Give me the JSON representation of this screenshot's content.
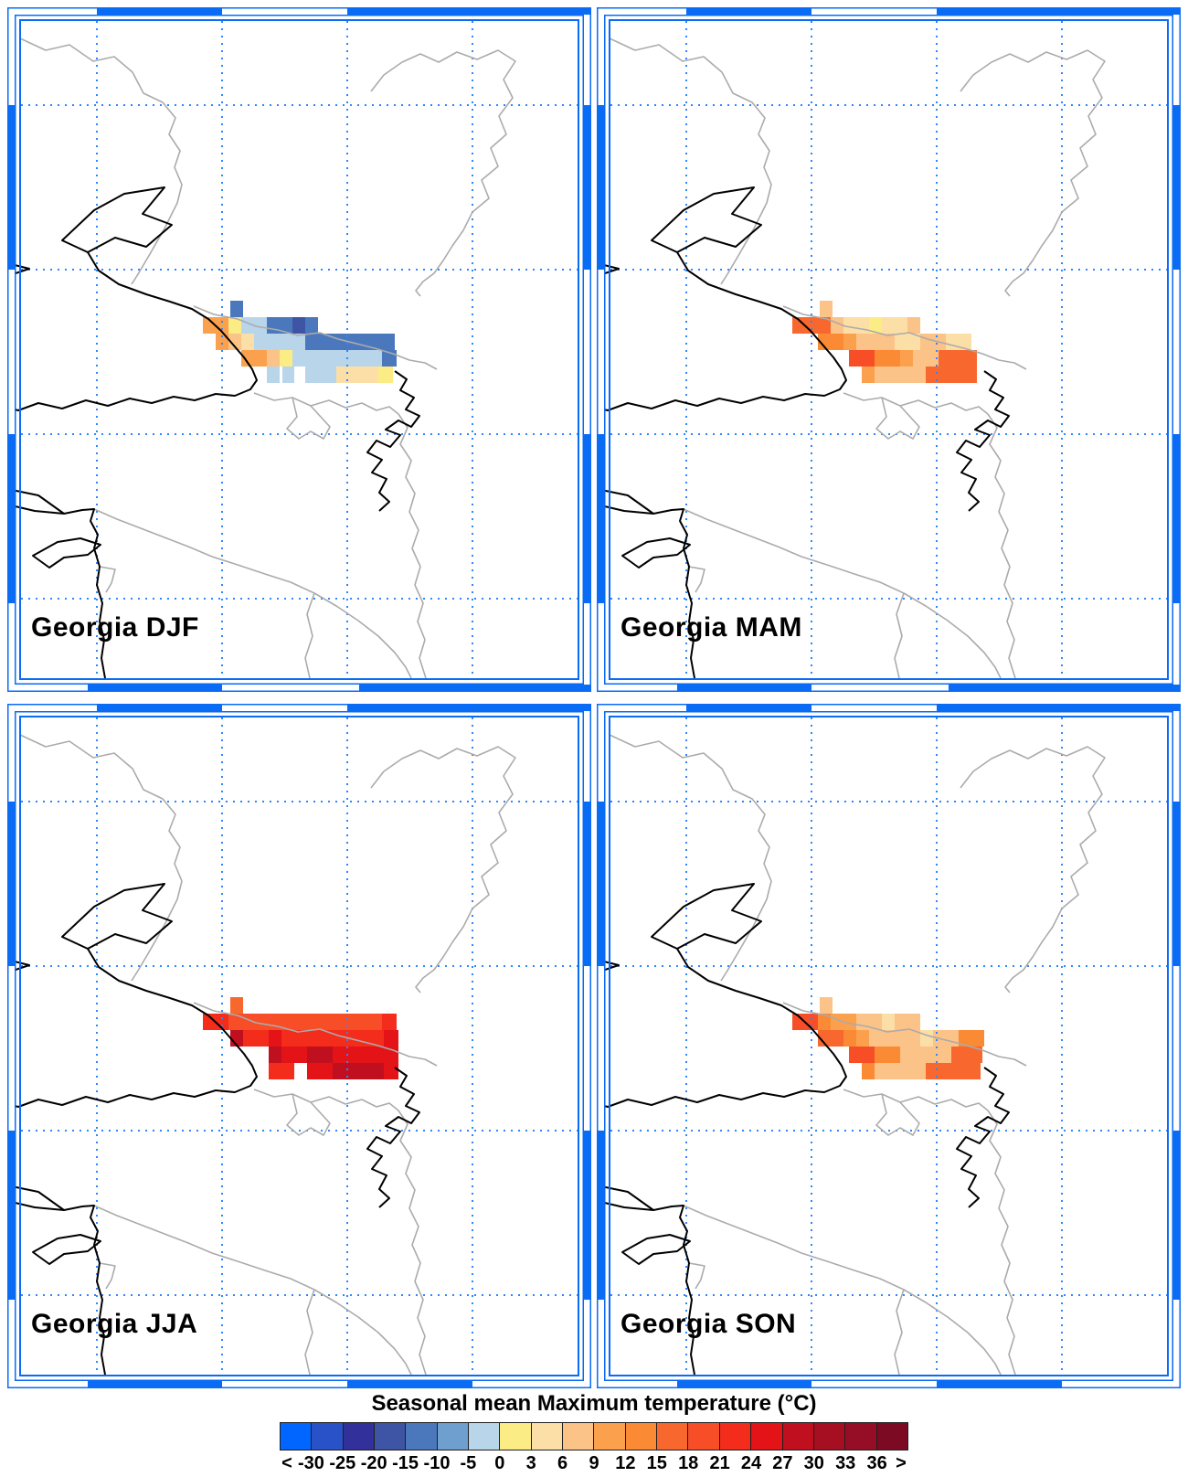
{
  "figure_title": "Seasonal mean Maximum temperature (°C)",
  "panels": [
    {
      "id": "djf",
      "label": "Georgia DJF",
      "cells": [
        [
          244,
          321,
          14,
          18,
          5
        ],
        [
          214,
          339,
          28,
          18,
          11
        ],
        [
          242,
          339,
          14,
          18,
          8
        ],
        [
          256,
          339,
          28,
          18,
          7
        ],
        [
          284,
          339,
          28,
          18,
          5
        ],
        [
          312,
          339,
          14,
          18,
          4
        ],
        [
          326,
          339,
          14,
          18,
          5
        ],
        [
          228,
          357,
          14,
          18,
          11
        ],
        [
          242,
          357,
          14,
          18,
          10
        ],
        [
          256,
          357,
          14,
          18,
          9
        ],
        [
          270,
          357,
          56,
          18,
          7
        ],
        [
          326,
          357,
          98,
          18,
          5
        ],
        [
          256,
          375,
          28,
          18,
          11
        ],
        [
          284,
          375,
          14,
          18,
          10
        ],
        [
          298,
          375,
          14,
          18,
          8
        ],
        [
          312,
          375,
          98,
          18,
          7
        ],
        [
          410,
          375,
          16,
          18,
          5
        ],
        [
          284,
          393,
          14,
          18,
          7
        ],
        [
          301,
          393,
          13,
          18,
          7
        ],
        [
          326,
          393,
          34,
          18,
          7
        ],
        [
          360,
          393,
          46,
          18,
          9
        ],
        [
          406,
          393,
          16,
          18,
          8
        ]
      ]
    },
    {
      "id": "mam",
      "label": "Georgia MAM",
      "cells": [
        [
          244,
          321,
          14,
          18,
          10
        ],
        [
          214,
          339,
          42,
          18,
          13
        ],
        [
          256,
          339,
          14,
          18,
          10
        ],
        [
          270,
          339,
          28,
          18,
          9
        ],
        [
          298,
          339,
          14,
          18,
          8
        ],
        [
          312,
          339,
          28,
          18,
          9
        ],
        [
          340,
          339,
          14,
          18,
          10
        ],
        [
          242,
          357,
          28,
          18,
          12
        ],
        [
          270,
          357,
          14,
          18,
          11
        ],
        [
          284,
          357,
          14,
          18,
          10
        ],
        [
          298,
          357,
          28,
          18,
          10
        ],
        [
          326,
          357,
          28,
          18,
          9
        ],
        [
          354,
          357,
          28,
          18,
          10
        ],
        [
          382,
          357,
          28,
          18,
          9
        ],
        [
          276,
          375,
          28,
          18,
          14
        ],
        [
          304,
          375,
          28,
          18,
          12
        ],
        [
          332,
          375,
          14,
          18,
          11
        ],
        [
          346,
          375,
          28,
          18,
          10
        ],
        [
          374,
          375,
          42,
          18,
          13
        ],
        [
          290,
          393,
          14,
          18,
          11
        ],
        [
          304,
          393,
          56,
          18,
          10
        ],
        [
          360,
          393,
          56,
          18,
          13
        ]
      ]
    },
    {
      "id": "jja",
      "label": "Georgia JJA",
      "cells": [
        [
          244,
          321,
          14,
          18,
          13
        ],
        [
          214,
          339,
          28,
          18,
          15
        ],
        [
          242,
          339,
          168,
          18,
          14
        ],
        [
          410,
          339,
          16,
          18,
          15
        ],
        [
          244,
          357,
          14,
          18,
          17
        ],
        [
          258,
          357,
          28,
          18,
          15
        ],
        [
          286,
          357,
          14,
          18,
          16
        ],
        [
          300,
          357,
          112,
          18,
          15
        ],
        [
          412,
          357,
          16,
          18,
          16
        ],
        [
          286,
          375,
          14,
          18,
          17
        ],
        [
          300,
          375,
          28,
          18,
          16
        ],
        [
          328,
          375,
          28,
          18,
          17
        ],
        [
          356,
          375,
          56,
          18,
          16
        ],
        [
          412,
          375,
          16,
          18,
          16
        ],
        [
          286,
          393,
          28,
          18,
          15
        ],
        [
          328,
          393,
          28,
          18,
          16
        ],
        [
          356,
          393,
          56,
          18,
          17
        ],
        [
          412,
          393,
          16,
          18,
          16
        ]
      ]
    },
    {
      "id": "son",
      "label": "Georgia SON",
      "cells": [
        [
          244,
          321,
          14,
          18,
          10
        ],
        [
          214,
          339,
          28,
          18,
          14
        ],
        [
          242,
          339,
          14,
          18,
          12
        ],
        [
          256,
          339,
          28,
          18,
          11
        ],
        [
          284,
          339,
          28,
          18,
          10
        ],
        [
          312,
          339,
          14,
          18,
          9
        ],
        [
          326,
          339,
          28,
          18,
          10
        ],
        [
          242,
          357,
          28,
          18,
          13
        ],
        [
          270,
          357,
          14,
          18,
          12
        ],
        [
          284,
          357,
          14,
          18,
          11
        ],
        [
          298,
          357,
          56,
          18,
          10
        ],
        [
          354,
          357,
          14,
          18,
          9
        ],
        [
          368,
          357,
          28,
          18,
          10
        ],
        [
          396,
          357,
          28,
          18,
          12
        ],
        [
          276,
          375,
          28,
          18,
          14
        ],
        [
          304,
          375,
          28,
          18,
          12
        ],
        [
          332,
          375,
          28,
          18,
          10
        ],
        [
          360,
          375,
          28,
          18,
          10
        ],
        [
          388,
          375,
          34,
          18,
          13
        ],
        [
          290,
          393,
          14,
          18,
          12
        ],
        [
          304,
          393,
          56,
          18,
          10
        ],
        [
          360,
          393,
          60,
          18,
          13
        ]
      ]
    }
  ],
  "colorbar": {
    "title": "Seasonal mean Maximum temperature (°C)",
    "colors": [
      "#0066FF",
      "#2951C8",
      "#32309B",
      "#3E55A6",
      "#4B78BC",
      "#6F9FCE",
      "#B9D5EA",
      "#FBEC85",
      "#FCDFA6",
      "#FCC388",
      "#FBA14E",
      "#FA8A33",
      "#F8682E",
      "#F74E28",
      "#F42C1B",
      "#E31318",
      "#C01020",
      "#A60E22",
      "#950E26",
      "#7C0A22"
    ],
    "tick_labels": [
      "<",
      "-30",
      "-25",
      "-20",
      "-15",
      "-10",
      "-5",
      "0",
      "3",
      "6",
      "9",
      "12",
      "15",
      "18",
      "21",
      "24",
      "27",
      "30",
      "33",
      "36",
      ">"
    ],
    "tick_values": [
      -30,
      -25,
      -20,
      -15,
      -10,
      -5,
      0,
      3,
      6,
      9,
      12,
      15,
      18,
      21,
      24,
      27,
      30,
      33,
      36
    ]
  },
  "map_style": {
    "frame_color": "#0A6BF5",
    "grid_color": "#2E86FF",
    "coast_color": "#000000",
    "border_color": "#ABABAB"
  }
}
